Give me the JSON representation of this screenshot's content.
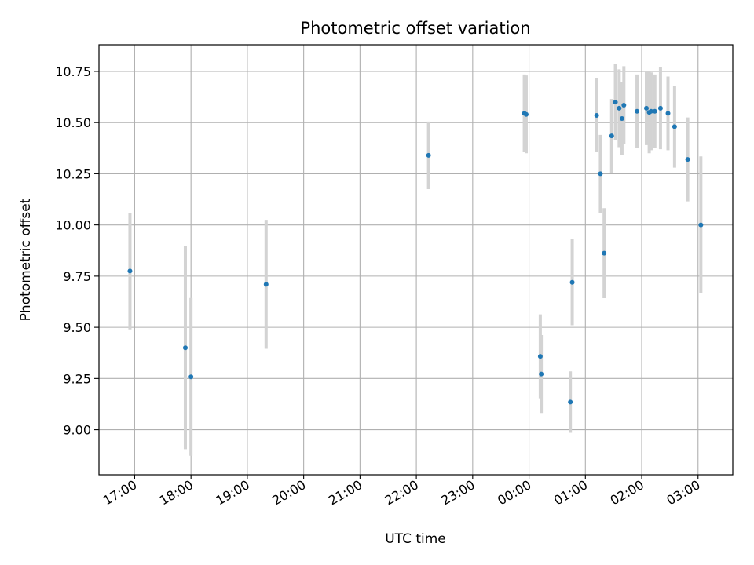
{
  "chart_data": {
    "type": "scatter",
    "title": "Photometric offset variation",
    "xlabel": "UTC time",
    "ylabel": "Photometric offset",
    "grid": true,
    "legend": "none",
    "x_axis_kind": "time",
    "xlim": [
      "16:22",
      "03:37"
    ],
    "ylim": [
      8.78,
      10.88
    ],
    "x_ticks": [
      "17:00",
      "18:00",
      "19:00",
      "20:00",
      "21:00",
      "22:00",
      "23:00",
      "00:00",
      "01:00",
      "02:00",
      "03:00"
    ],
    "y_ticks": [
      "9.00",
      "9.25",
      "9.50",
      "9.75",
      "10.00",
      "10.25",
      "10.50",
      "10.75"
    ],
    "y_tick_values": [
      9.0,
      9.25,
      9.5,
      9.75,
      10.0,
      10.25,
      10.5,
      10.75
    ],
    "colors": {
      "point": "#1f77b4",
      "error_bar": "#d3d3d3",
      "grid": "#b0b0b0"
    },
    "series": [
      {
        "points": [
          {
            "x": "16:55",
            "y": 9.775,
            "err": 0.285
          },
          {
            "x": "17:54",
            "y": 9.4,
            "err": 0.495
          },
          {
            "x": "18:00",
            "y": 9.258,
            "err": 0.385
          },
          {
            "x": "19:20",
            "y": 9.71,
            "err": 0.315
          },
          {
            "x": "22:13",
            "y": 10.34,
            "err": 0.165
          },
          {
            "x": "23:55",
            "y": 10.545,
            "err": 0.19
          },
          {
            "x": "23:57",
            "y": 10.54,
            "err": 0.19
          },
          {
            "x": "00:12",
            "y": 9.358,
            "err": 0.205
          },
          {
            "x": "00:13",
            "y": 9.272,
            "err": 0.19
          },
          {
            "x": "00:44",
            "y": 9.135,
            "err": 0.15
          },
          {
            "x": "00:46",
            "y": 9.72,
            "err": 0.21
          },
          {
            "x": "01:12",
            "y": 10.535,
            "err": 0.18
          },
          {
            "x": "01:16",
            "y": 10.25,
            "err": 0.19
          },
          {
            "x": "01:20",
            "y": 9.862,
            "err": 0.22
          },
          {
            "x": "01:28",
            "y": 10.435,
            "err": 0.18
          },
          {
            "x": "01:32",
            "y": 10.6,
            "err": 0.185
          },
          {
            "x": "01:36",
            "y": 10.57,
            "err": 0.19
          },
          {
            "x": "01:39",
            "y": 10.52,
            "err": 0.18
          },
          {
            "x": "01:41",
            "y": 10.585,
            "err": 0.19
          },
          {
            "x": "01:55",
            "y": 10.555,
            "err": 0.18
          },
          {
            "x": "02:05",
            "y": 10.57,
            "err": 0.18
          },
          {
            "x": "02:08",
            "y": 10.55,
            "err": 0.2
          },
          {
            "x": "02:10",
            "y": 10.555,
            "err": 0.19
          },
          {
            "x": "02:14",
            "y": 10.555,
            "err": 0.18
          },
          {
            "x": "02:20",
            "y": 10.57,
            "err": 0.2
          },
          {
            "x": "02:28",
            "y": 10.545,
            "err": 0.18
          },
          {
            "x": "02:35",
            "y": 10.48,
            "err": 0.2
          },
          {
            "x": "02:49",
            "y": 10.32,
            "err": 0.205
          },
          {
            "x": "03:03",
            "y": 10.0,
            "err": 0.335
          }
        ]
      }
    ]
  }
}
